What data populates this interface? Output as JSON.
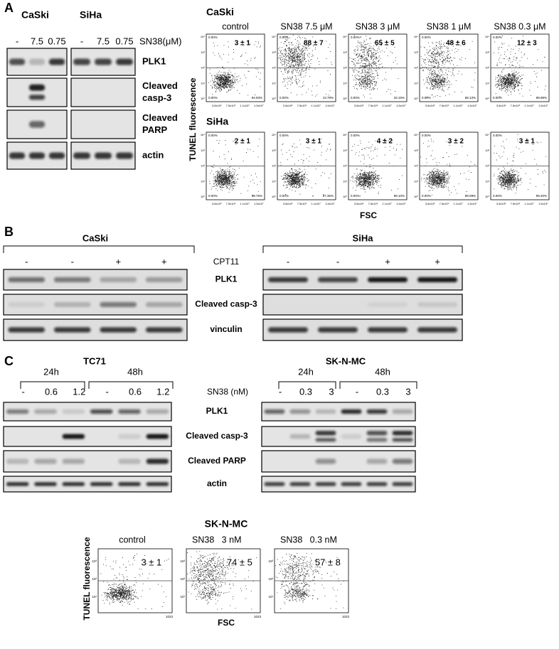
{
  "panel_a": {
    "label": "A",
    "blot": {
      "cell_lines": [
        "CaSki",
        "SiHa"
      ],
      "lanes": [
        [
          "-",
          "7.5",
          "0.75"
        ],
        [
          "-",
          "7.5",
          "0.75"
        ]
      ],
      "treatment": "SN38(μM)",
      "rows": [
        [
          "PLK1"
        ],
        [
          "Cleaved",
          "casp-3"
        ],
        [
          "Cleaved",
          "PARP"
        ],
        [
          "actin"
        ]
      ]
    },
    "flow": {
      "rows": [
        {
          "cell_line": "CaSki",
          "titles": [
            "control",
            "SN38 7.5 μM",
            "SN38 3 μM",
            "SN38 1 μM",
            "SN38 0.3 μM"
          ],
          "values": [
            "3 ± 1",
            "88 ± 7",
            "65 ± 5",
            "48 ± 6",
            "12 ± 3"
          ],
          "lower_right": [
            "94.93%",
            "13.79%",
            "33.15%",
            "58.13%",
            "89.99%"
          ]
        },
        {
          "cell_line": "SiHa",
          "values": [
            "2 ± 1",
            "3 ± 1",
            "4 ± 2",
            "3 ± 2",
            "3 ± 1"
          ],
          "lower_right": [
            "99.76%",
            "97.35%",
            "99.10%",
            "99.00%",
            "99.20%"
          ]
        }
      ],
      "corner": "0.00%",
      "x_ticks": [
        "3.8x10⁶",
        "7.5x10⁶",
        "1.1x10⁷",
        "1.5x10⁷"
      ],
      "y_ticks": [
        "10⁴",
        "10³",
        "10²",
        "10¹",
        "10⁰"
      ],
      "y_label": "TUNEL fluorescence",
      "x_label": "FSC"
    }
  },
  "panel_b": {
    "label": "B",
    "cell_lines": [
      "CaSki",
      "SiHa"
    ],
    "lanes": [
      [
        "-",
        "-",
        "+",
        "+"
      ],
      [
        "-",
        "-",
        "+",
        "+"
      ]
    ],
    "treatment": "CPT11",
    "rows": [
      "PLK1",
      "Cleaved casp-3",
      "vinculin"
    ]
  },
  "panel_c": {
    "label": "C",
    "cell_lines": [
      "TC71",
      "SK-N-MC"
    ],
    "times": [
      [
        "24h",
        "48h"
      ],
      [
        "24h",
        "48h"
      ]
    ],
    "lanes": [
      [
        "-",
        "0.6",
        "1.2",
        "-",
        "0.6",
        "1.2"
      ],
      [
        "-",
        "0.3",
        "3",
        "-",
        "0.3",
        "3"
      ]
    ],
    "treatment": "SN38 (nM)",
    "rows": [
      "PLK1",
      "Cleaved casp-3",
      "Cleaved PARP",
      "actin"
    ]
  },
  "panel_c_flow": {
    "cell_line": "SK-N-MC",
    "titles": [
      "control",
      "SN38   3 nM",
      "SN38   0.3 nM"
    ],
    "values": [
      "3 ± 1",
      "74 ± 5",
      "57 ± 8"
    ],
    "y_ticks": [
      "10³",
      "10²",
      "10¹"
    ],
    "x_end_tick": "1023",
    "y_label": "TUNEL fluorescence",
    "x_label": "FSC"
  }
}
